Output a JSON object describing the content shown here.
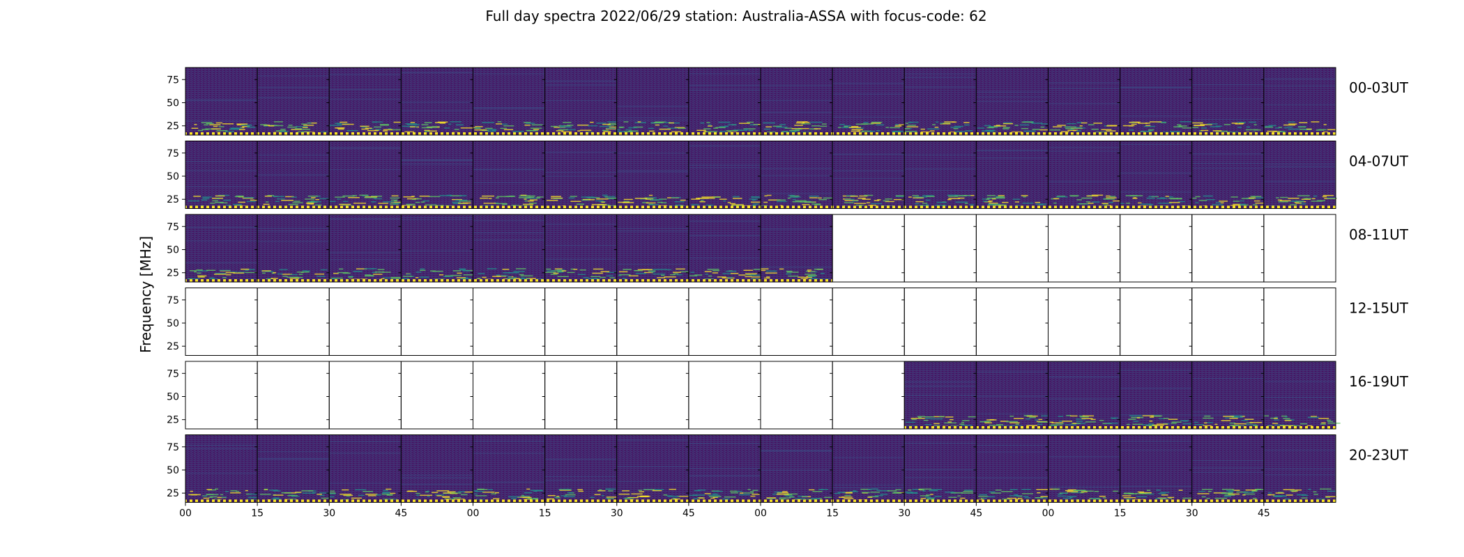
{
  "chart_data": {
    "type": "heatmap",
    "title": "Full day spectra 2022/06/29 station: Australia-ASSA with focus-code: 62",
    "ylabel": "Frequency [MHz]",
    "y_ticks": [
      25,
      50,
      75
    ],
    "ylim": [
      15,
      88
    ],
    "x_tick_labels": [
      "00",
      "15",
      "30",
      "45",
      "00",
      "15",
      "30",
      "45",
      "00",
      "15",
      "30",
      "45",
      "00",
      "15",
      "30",
      "45"
    ],
    "panels_per_row": 16,
    "panel_minutes": 15,
    "colormap": [
      "#440154",
      "#3b528b",
      "#21918c",
      "#5ec962",
      "#fde725"
    ],
    "rows": [
      {
        "label": "00-03UT",
        "has_data": [
          1,
          1,
          1,
          1,
          1,
          1,
          1,
          1,
          1,
          1,
          1,
          1,
          1,
          1,
          1,
          1
        ]
      },
      {
        "label": "04-07UT",
        "has_data": [
          1,
          1,
          1,
          1,
          1,
          1,
          1,
          1,
          1,
          1,
          1,
          1,
          1,
          1,
          1,
          1
        ]
      },
      {
        "label": "08-11UT",
        "has_data": [
          1,
          1,
          1,
          1,
          1,
          1,
          1,
          1,
          1,
          0,
          0,
          0,
          0,
          0,
          0,
          0
        ]
      },
      {
        "label": "12-15UT",
        "has_data": [
          0,
          0,
          0,
          0,
          0,
          0,
          0,
          0,
          0,
          0,
          0,
          0,
          0,
          0,
          0,
          0
        ]
      },
      {
        "label": "16-19UT",
        "has_data": [
          0,
          0,
          0,
          0,
          0,
          0,
          0,
          0,
          0,
          0,
          1,
          1,
          1,
          1,
          1,
          1
        ]
      },
      {
        "label": "20-23UT",
        "has_data": [
          1,
          1,
          1,
          1,
          1,
          1,
          1,
          1,
          1,
          1,
          1,
          1,
          1,
          1,
          1,
          1
        ]
      }
    ]
  }
}
